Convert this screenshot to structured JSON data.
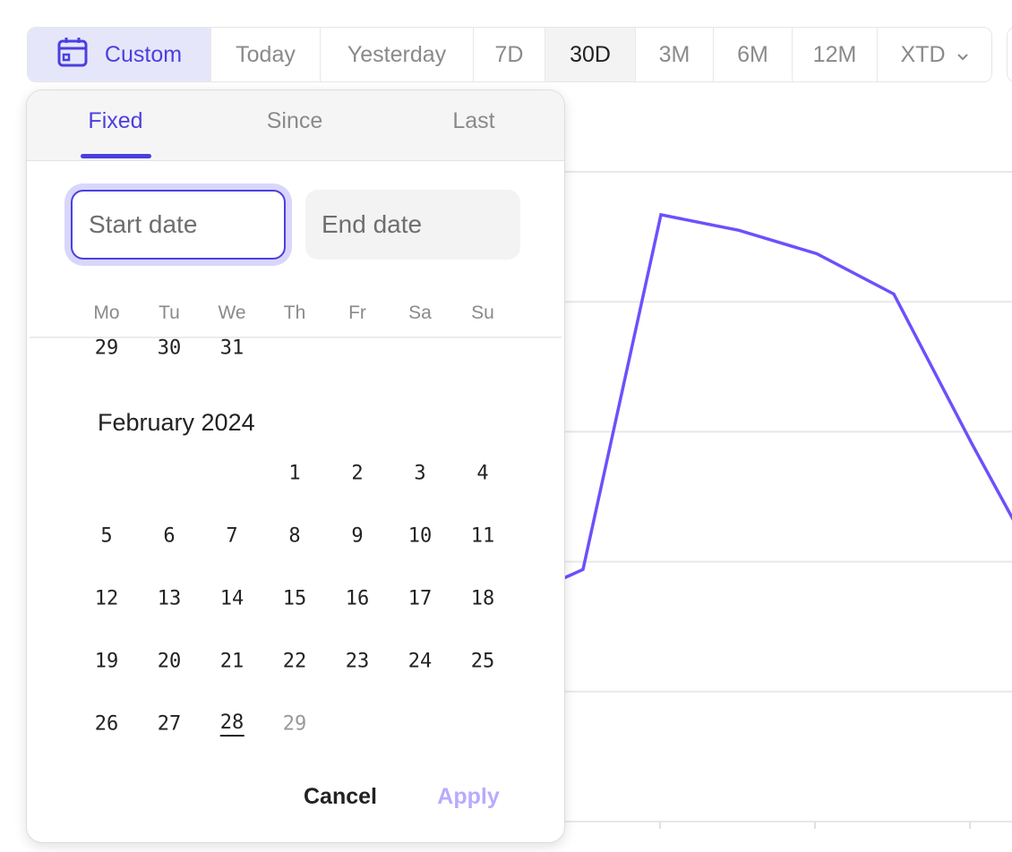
{
  "toolbar": {
    "custom": {
      "label": "Custom",
      "icon": "calendar-icon"
    },
    "presets": [
      {
        "label": "Today",
        "w": 122
      },
      {
        "label": "Yesterday",
        "w": 171
      },
      {
        "label": "7D",
        "w": 80
      },
      {
        "label": "30D",
        "w": 101,
        "active": true
      },
      {
        "label": "3M",
        "w": 87
      },
      {
        "label": "6M",
        "w": 88
      },
      {
        "label": "12M",
        "w": 95
      },
      {
        "label": "XTD",
        "w": 127,
        "dropdown": true
      }
    ]
  },
  "picker": {
    "tabs": [
      "Fixed",
      "Since",
      "Last"
    ],
    "selected_tab": "Fixed",
    "start_placeholder": "Start date",
    "end_placeholder": "End date",
    "weekdays": [
      "Mo",
      "Tu",
      "We",
      "Th",
      "Fr",
      "Sa",
      "Su"
    ],
    "prev_month_tail": [
      "29",
      "30",
      "31"
    ],
    "month_label": "February 2024",
    "first_weekday_index": 3,
    "days": [
      "1",
      "2",
      "3",
      "4",
      "5",
      "6",
      "7",
      "8",
      "9",
      "10",
      "11",
      "12",
      "13",
      "14",
      "15",
      "16",
      "17",
      "18",
      "19",
      "20",
      "21",
      "22",
      "23",
      "24",
      "25",
      "26",
      "27",
      "28",
      "29"
    ],
    "today": "28",
    "disabled_days": [
      "29"
    ],
    "cancel_label": "Cancel",
    "apply_label": "Apply"
  },
  "colors": {
    "accent": "#4b3fe0",
    "line": "#6e4ffc",
    "apply_disabled": "#b9aaff",
    "custom_bg": "#e6e6fa"
  },
  "chart_data": {
    "type": "line",
    "grid": true,
    "gridlines": 5,
    "series": [
      {
        "values": [
          1.67,
          1.94,
          4.67,
          4.55,
          4.37,
          4.06,
          2.91,
          1.81
        ]
      }
    ],
    "ylim": [
      0,
      5
    ]
  }
}
